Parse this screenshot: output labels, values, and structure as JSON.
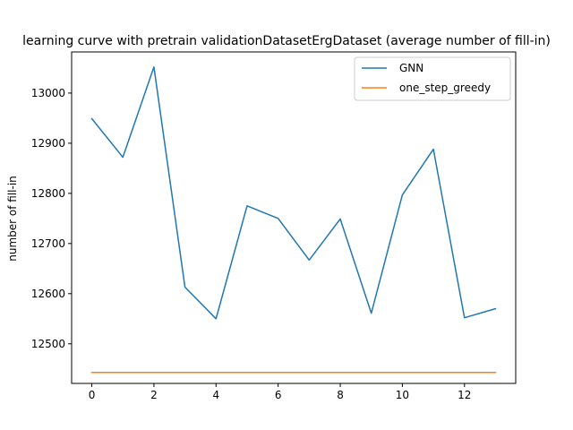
{
  "chart_data": {
    "type": "line",
    "title": "learning curve with pretrain validationDatasetErgDataset (average number of fill-in)",
    "xlabel": "",
    "ylabel": "number of fill-in",
    "xlim": [
      -0.65,
      13.65
    ],
    "ylim": [
      12421,
      13082
    ],
    "x_ticks": [
      0,
      2,
      4,
      6,
      8,
      10,
      12
    ],
    "y_ticks": [
      12500,
      12600,
      12700,
      12800,
      12900,
      13000
    ],
    "grid": false,
    "legend_position": "upper right",
    "x": [
      0,
      1,
      2,
      3,
      4,
      5,
      6,
      7,
      8,
      9,
      10,
      11,
      12,
      13
    ],
    "series": [
      {
        "name": "GNN",
        "color": "#1f77b4",
        "values": [
          12949,
          12872,
          13052,
          12613,
          12550,
          12775,
          12750,
          12667,
          12749,
          12561,
          12797,
          12888,
          12552,
          12570
        ]
      },
      {
        "name": "one_step_greedy",
        "color": "#ff7f0e",
        "values": [
          12443,
          12443,
          12443,
          12443,
          12443,
          12443,
          12443,
          12443,
          12443,
          12443,
          12443,
          12443,
          12443,
          12443
        ]
      }
    ]
  }
}
